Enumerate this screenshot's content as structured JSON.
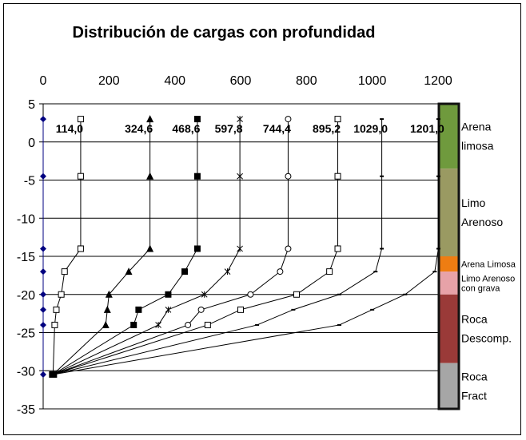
{
  "chart_data": {
    "type": "line",
    "title": "Distribución de cargas con profundidad",
    "xlabel": "",
    "ylabel": "",
    "xlim": [
      0,
      1200
    ],
    "ylim": [
      -35,
      5
    ],
    "x_ticks": [
      "0",
      "200",
      "400",
      "600",
      "800",
      "1000",
      "1200"
    ],
    "y_ticks": [
      "5",
      "0",
      "-5",
      "-10",
      "-15",
      "-20",
      "-25",
      "-30",
      "-35"
    ],
    "grid": "horizontal",
    "series": [
      {
        "marker": "diamond",
        "color": "#000080",
        "x": [
          0,
          0,
          0,
          0,
          0,
          0,
          0,
          0
        ],
        "y": [
          3,
          -4.5,
          -14,
          -17,
          -20,
          -22,
          -24,
          -30.5
        ]
      },
      {
        "marker": "square-open",
        "color": "#000000",
        "x": [
          114,
          114,
          114,
          65,
          55,
          40,
          35,
          30
        ],
        "y": [
          3,
          -4.5,
          -14,
          -17,
          -20,
          -22,
          -24,
          -30.5
        ]
      },
      {
        "marker": "triangle",
        "color": "#000000",
        "x": [
          324.6,
          324.6,
          324.6,
          260,
          200,
          195,
          190,
          30
        ],
        "y": [
          3,
          -4.5,
          -14,
          -17,
          -20,
          -22,
          -24,
          -30.5
        ]
      },
      {
        "marker": "square-filled",
        "color": "#000000",
        "x": [
          468.6,
          468.6,
          468.6,
          430,
          380,
          290,
          275,
          30
        ],
        "y": [
          3,
          -4.5,
          -14,
          -17,
          -20,
          -22,
          -24,
          -30.5
        ]
      },
      {
        "marker": "star",
        "color": "#000000",
        "x": [
          597.8,
          597.8,
          597.8,
          560,
          490,
          380,
          350,
          30
        ],
        "y": [
          3,
          -4.5,
          -14,
          -17,
          -20,
          -22,
          -24,
          -30.5
        ]
      },
      {
        "marker": "circle-open",
        "color": "#000000",
        "x": [
          744.4,
          744.4,
          744.4,
          720,
          630,
          480,
          440,
          30
        ],
        "y": [
          3,
          -4.5,
          -14,
          -17,
          -20,
          -22,
          -24,
          -30.5
        ]
      },
      {
        "marker": "square-open",
        "color": "#000000",
        "x": [
          895.2,
          895.2,
          895.2,
          870,
          770,
          600,
          500,
          30
        ],
        "y": [
          3,
          -4.5,
          -14,
          -17,
          -20,
          -22,
          -24,
          -30.5
        ]
      },
      {
        "marker": "dash",
        "color": "#000000",
        "x": [
          1029,
          1029,
          1029,
          1010,
          900,
          760,
          650,
          30
        ],
        "y": [
          3,
          -4.5,
          -14,
          -17,
          -20,
          -22,
          -24,
          -30.5
        ]
      },
      {
        "marker": "dash",
        "color": "#000000",
        "x": [
          1201,
          1201,
          1201,
          1190,
          1100,
          1000,
          900,
          30
        ],
        "y": [
          3,
          -4.5,
          -14,
          -17,
          -20,
          -22,
          -24,
          -30.5
        ]
      }
    ],
    "load_labels": [
      {
        "text": "114,0",
        "x": 114,
        "y": 1
      },
      {
        "text": "324,6",
        "x": 324.6,
        "y": 1
      },
      {
        "text": "468,6",
        "x": 468.6,
        "y": 1
      },
      {
        "text": "597,8",
        "x": 597.8,
        "y": 1
      },
      {
        "text": "744,4",
        "x": 744.4,
        "y": 1
      },
      {
        "text": "895,2",
        "x": 895.2,
        "y": 1
      },
      {
        "text": "1029,0",
        "x": 1029,
        "y": 1
      },
      {
        "text": "1201,0",
        "x": 1201,
        "y": 1
      }
    ],
    "soil_layers": [
      {
        "top": 5,
        "bottom": -3.5,
        "color": "#6f9a3d",
        "lines": [
          "Arena",
          "limosa"
        ]
      },
      {
        "top": -3.5,
        "bottom": -15,
        "color": "#9a9a62",
        "lines": [
          "Limo",
          "Arenoso"
        ]
      },
      {
        "top": -15,
        "bottom": -17,
        "color": "#ee7d12",
        "lines": [
          "Arena Limosa"
        ]
      },
      {
        "top": -17,
        "bottom": -20,
        "color": "#e7a2a8",
        "lines": [
          "Limo Arenoso",
          "con grava"
        ]
      },
      {
        "top": -20,
        "bottom": -29,
        "color": "#9a3a38",
        "lines": [
          "Roca",
          "Descomp."
        ]
      },
      {
        "top": -29,
        "bottom": -35,
        "color": "#a6a6a6",
        "lines": [
          "Roca",
          "Fract"
        ]
      }
    ]
  }
}
